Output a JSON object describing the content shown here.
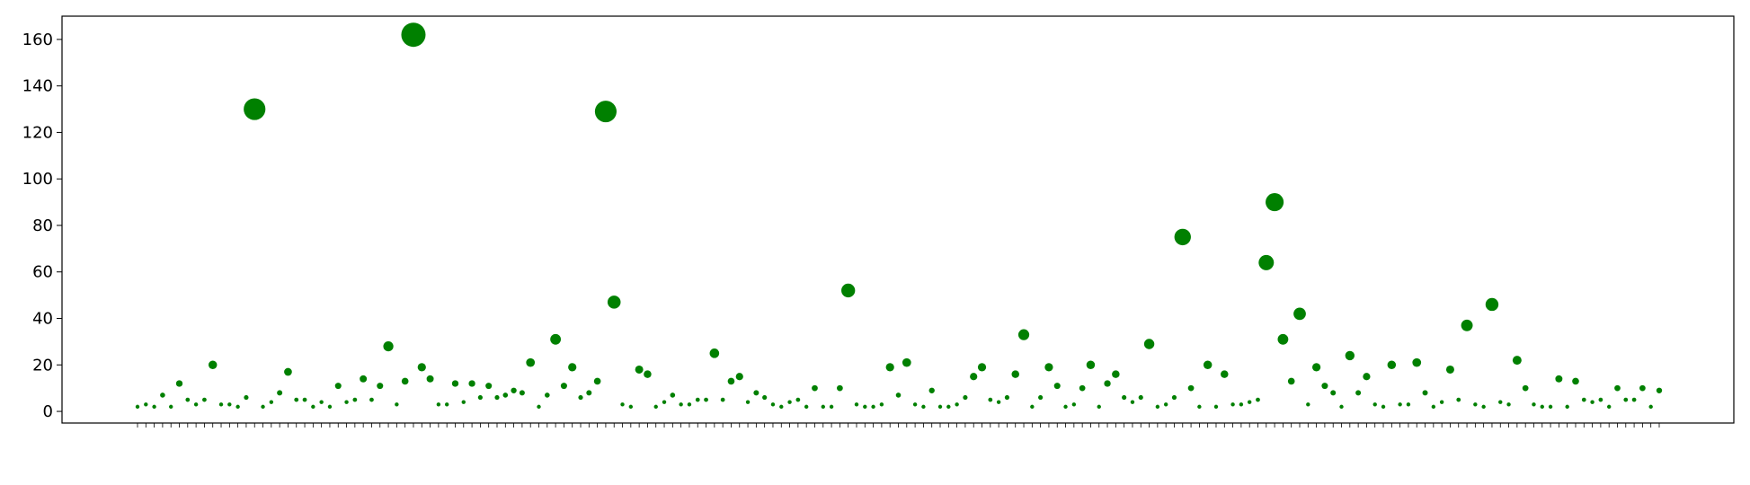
{
  "chart_data": {
    "type": "scatter",
    "title": "",
    "xlabel": "",
    "ylabel": "",
    "ylim": [
      -5,
      170
    ],
    "yticks": [
      0,
      20,
      40,
      60,
      80,
      100,
      120,
      140,
      160
    ],
    "marker_color": "#008000",
    "size_encodes_value": true,
    "grid": false,
    "x_tick_labels_note": "Tiny rotated Persian word labels, one per point (illegible at this resolution)",
    "values": [
      2,
      3,
      2,
      7,
      2,
      12,
      5,
      3,
      5,
      20,
      3,
      3,
      2,
      6,
      130,
      2,
      4,
      8,
      17,
      5,
      5,
      2,
      4,
      2,
      11,
      4,
      5,
      14,
      5,
      11,
      28,
      3,
      13,
      162,
      19,
      14,
      3,
      3,
      12,
      4,
      12,
      6,
      11,
      6,
      7,
      9,
      8,
      21,
      2,
      7,
      31,
      11,
      19,
      6,
      8,
      13,
      129,
      47,
      3,
      2,
      18,
      16,
      2,
      4,
      7,
      3,
      3,
      5,
      5,
      25,
      5,
      13,
      15,
      4,
      8,
      6,
      3,
      2,
      4,
      5,
      2,
      10,
      2,
      2,
      10,
      52,
      3,
      2,
      2,
      3,
      19,
      7,
      21,
      3,
      2,
      9,
      2,
      2,
      3,
      6,
      15,
      19,
      5,
      4,
      6,
      16,
      33,
      2,
      6,
      19,
      11,
      2,
      3,
      10,
      20,
      2,
      12,
      16,
      6,
      4,
      6,
      29,
      2,
      3,
      6,
      75,
      10,
      2,
      20,
      2,
      16,
      3,
      3,
      4,
      5,
      64,
      90,
      31,
      13,
      42,
      3,
      19,
      11,
      8,
      2,
      24,
      8,
      15,
      3,
      2,
      20,
      3,
      3,
      21,
      8,
      2,
      4,
      18,
      5,
      37,
      3,
      2,
      46,
      4,
      3,
      22,
      10,
      3,
      2,
      2,
      14,
      2,
      13,
      5,
      4,
      5,
      2,
      10,
      5,
      5,
      10,
      2,
      9
    ]
  }
}
